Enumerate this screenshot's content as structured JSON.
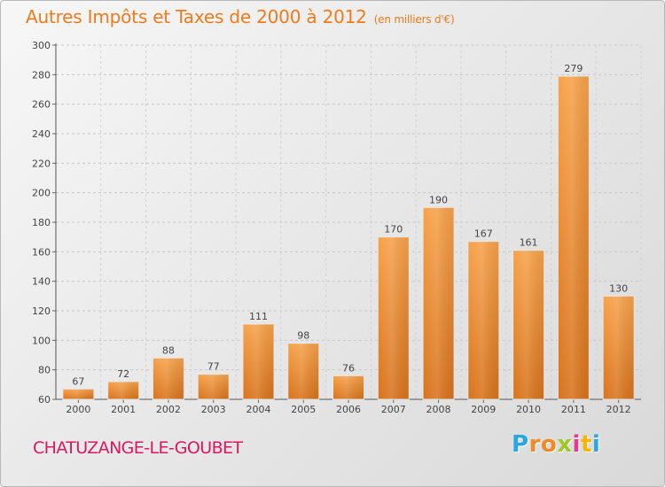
{
  "chart_data": {
    "type": "bar",
    "title": "Autres Impôts et Taxes de 2000 à 2012",
    "unit_label": "(en milliers d'€)",
    "categories": [
      "2000",
      "2001",
      "2002",
      "2003",
      "2004",
      "2005",
      "2006",
      "2007",
      "2008",
      "2009",
      "2010",
      "2011",
      "2012"
    ],
    "values": [
      67,
      72,
      88,
      77,
      111,
      98,
      76,
      170,
      190,
      167,
      161,
      279,
      130
    ],
    "ylim": [
      60,
      300
    ],
    "yticks": [
      60,
      80,
      100,
      120,
      140,
      160,
      180,
      200,
      220,
      240,
      260,
      280,
      300
    ],
    "grid": "horizontal dashed",
    "bar_color": "#f0953a",
    "legend": "none"
  },
  "footer": {
    "commune": "CHATUZANGE-LE-GOUBET",
    "logo_letters": [
      "P",
      "r",
      "o",
      "x",
      "i",
      "t",
      "i"
    ],
    "logo_colors": [
      "#2aa7e0",
      "#f08a24",
      "#f08a24",
      "#9cc925",
      "#e63b8a",
      "#f5b400",
      "#2aa7e0"
    ]
  },
  "colors": {
    "title": "#f07a1a",
    "commune": "#d9185f"
  }
}
